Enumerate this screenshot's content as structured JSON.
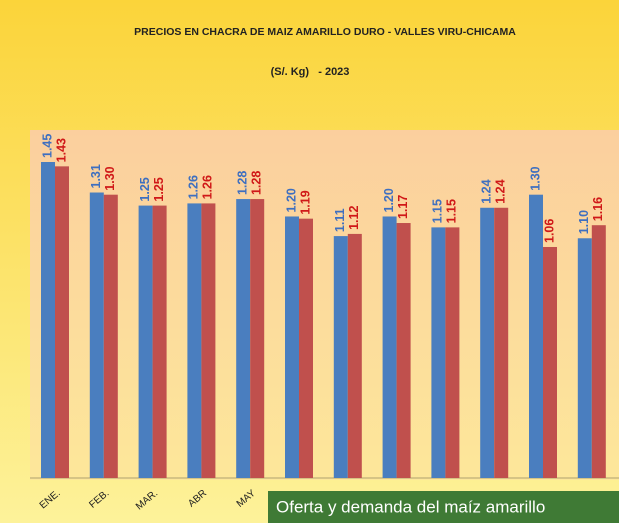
{
  "chart_data": {
    "type": "bar",
    "title": "PRECIOS EN CHACRA DE MAIZ AMARILLO DURO - VALLES VIRU-CHICAMA",
    "subtitle": "(S/. Kg)   - 2023",
    "categories": [
      "ENE.",
      "FEB.",
      "MAR.",
      "ABR",
      "MAY",
      null,
      null,
      null,
      null,
      null,
      null,
      null
    ],
    "series": [
      {
        "color": "#4a7ebf",
        "values": [
          1.45,
          1.31,
          1.25,
          1.26,
          1.28,
          1.2,
          1.11,
          1.2,
          1.15,
          1.24,
          1.3,
          1.1
        ],
        "value_labels": [
          "1.45",
          "1.31",
          "1.25",
          "1.26",
          "1.28",
          "1.20",
          "1.11",
          "1.20",
          "1.15",
          "1.24",
          "1.30",
          "1.10"
        ]
      },
      {
        "color": "#c0504d",
        "values": [
          1.43,
          1.3,
          1.25,
          1.26,
          1.28,
          1.19,
          1.12,
          1.17,
          1.15,
          1.24,
          1.06,
          1.16
        ],
        "value_labels": [
          "1.43",
          "1.30",
          "1.25",
          "1.26",
          "1.28",
          "1.19",
          "1.12",
          "1.17",
          "1.15",
          "1.24",
          "1.06",
          "1.16"
        ]
      }
    ]
  },
  "caption": "Oferta y demanda del maíz amarillo"
}
